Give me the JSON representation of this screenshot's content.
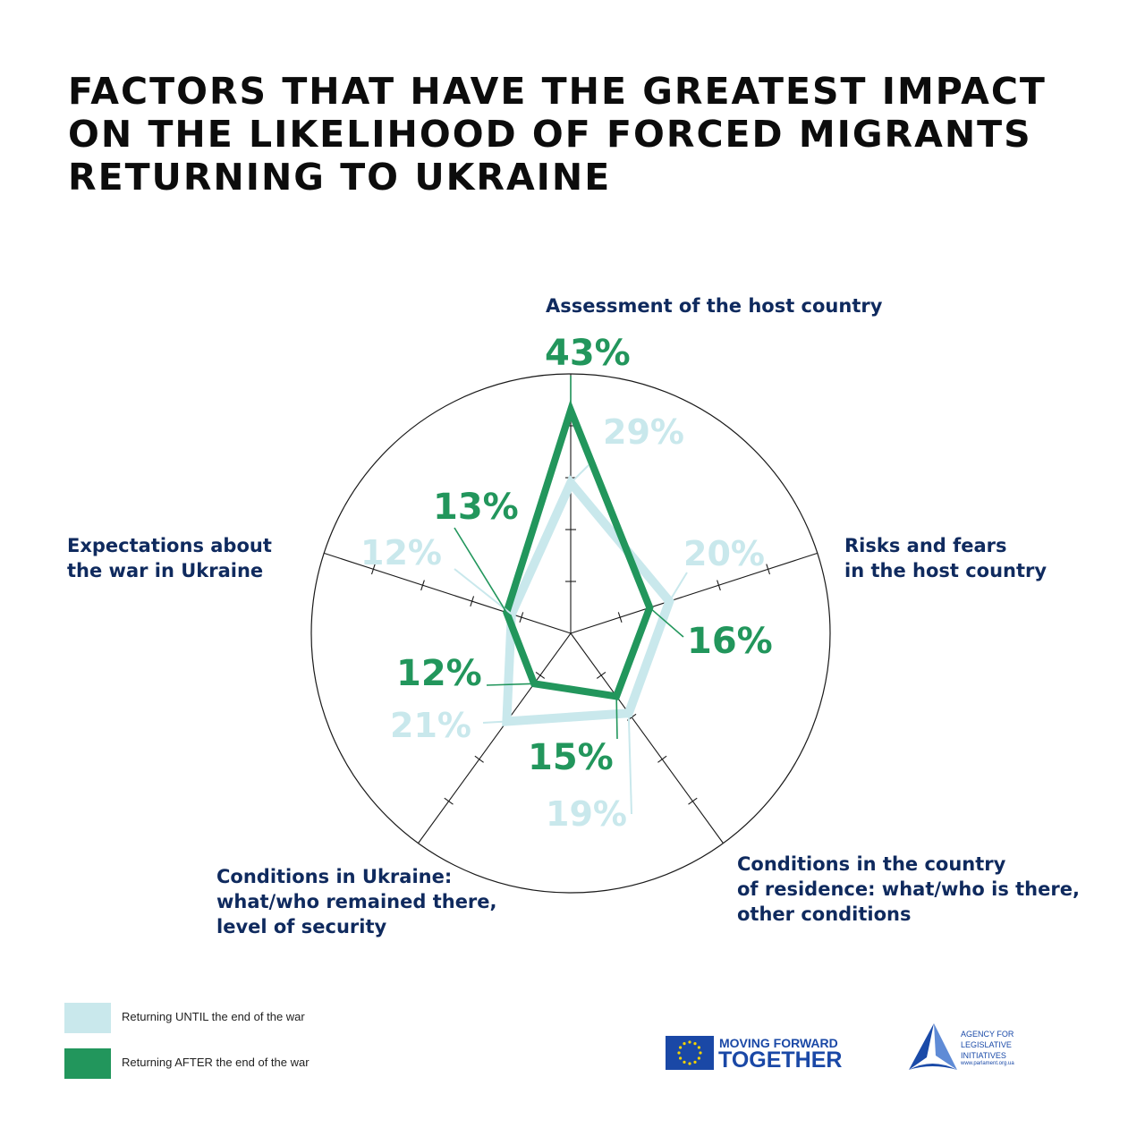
{
  "title_lines": [
    "FACTORS THAT HAVE THE GREATEST IMPACT",
    "ON THE LIKELIHOOD OF FORCED MIGRANTS",
    "RETURNING TO UKRAINE"
  ],
  "chart_data": {
    "type": "radar",
    "title": "FACTORS THAT HAVE THE GREATEST IMPACT ON THE LIKELIHOOD OF FORCED MIGRANTS RETURNING TO UKRAINE",
    "categories": [
      "Assessment of the host country",
      "Risks and fears in the host country",
      "Conditions in the country of residence: what/who is there, other conditions",
      "Conditions in Ukraine: what/who remained there, level of security",
      "Expectations about the war in Ukraine"
    ],
    "category_lines": [
      [
        "Assessment of the host country"
      ],
      [
        "Risks and fears",
        "in the host country"
      ],
      [
        "Conditions in the country",
        "of residence: what/who is there,",
        "other conditions"
      ],
      [
        "Conditions in Ukraine:",
        "what/who remained there,",
        "level of security"
      ],
      [
        "Expectations about",
        "the war in Ukraine"
      ]
    ],
    "series": [
      {
        "name": "Returning UNTIL the end of the war",
        "values": [
          29,
          20,
          19,
          21,
          12
        ],
        "labels": [
          "29%",
          "20%",
          "19%",
          "21%",
          "12%"
        ],
        "color": "#c9e8ec"
      },
      {
        "name": "Returning AFTER the end of the war",
        "values": [
          43,
          16,
          15,
          12,
          13
        ],
        "labels": [
          "43%",
          "16%",
          "15%",
          "12%",
          "13%"
        ],
        "color": "#22965c"
      }
    ],
    "rmax": 50,
    "legend_position": "bottom-left"
  },
  "legend": [
    {
      "label": "Returning UNTIL the end of the war",
      "color": "#c9e8ec"
    },
    {
      "label": "Returning AFTER the end of the war",
      "color": "#22965c"
    }
  ],
  "logos": {
    "eu_line1": "MOVING FORWARD",
    "eu_line2": "TOGETHER",
    "ali_lines": [
      "AGENCY FOR",
      "LEGISLATIVE",
      "INITIATIVES"
    ],
    "ali_url": "www.parlament.org.ua"
  },
  "colors": {
    "title": "#0c0c0c",
    "category_label": "#0f2a5e",
    "after_series": "#22965c",
    "until_series": "#c9e8ec",
    "brand_blue": "#1a48a6"
  }
}
